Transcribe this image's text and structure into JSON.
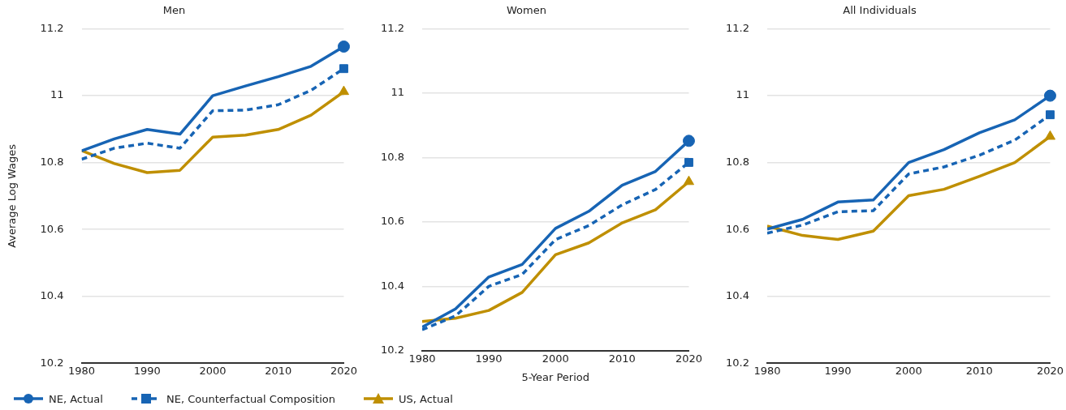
{
  "chart_data": [
    {
      "type": "line",
      "title": "Men",
      "ylabel": "Average Log Wages",
      "x": [
        1980,
        1985,
        1990,
        1995,
        2000,
        2005,
        2010,
        2015,
        2020
      ],
      "xlim": [
        1980,
        2020
      ],
      "xticks": [
        1980,
        1990,
        2000,
        2010,
        2020
      ],
      "ylim": [
        10.2,
        11.2
      ],
      "yticks": [
        10.2,
        10.4,
        10.6,
        10.8,
        11,
        11.2
      ],
      "grid": "y",
      "legend": "bottom",
      "series": [
        {
          "name": "NE, Actual",
          "color": "#1764b4",
          "line_style": "solid",
          "values": [
            10.835,
            10.871,
            10.899,
            10.885,
            11.0,
            11.029,
            11.057,
            11.088,
            11.147
          ]
        },
        {
          "type": "scatter",
          "color": "#1764b4",
          "marker": "circle",
          "values": [
            null,
            null,
            null,
            null,
            null,
            null,
            null,
            null,
            11.147
          ]
        },
        {
          "name": "NE, Counterfactual Composition",
          "color": "#1764b4",
          "line_style": "dashed",
          "values": [
            10.81,
            10.843,
            10.858,
            10.843,
            10.955,
            10.957,
            10.973,
            11.016,
            11.081
          ]
        },
        {
          "type": "scatter",
          "color": "#1764b4",
          "marker": "square",
          "values": [
            null,
            null,
            null,
            null,
            null,
            null,
            null,
            null,
            11.081
          ]
        },
        {
          "name": "US, Actual",
          "color": "#bf8f00",
          "line_style": "solid",
          "values": [
            10.836,
            10.797,
            10.77,
            10.777,
            10.876,
            10.882,
            10.899,
            10.942,
            11.012
          ]
        },
        {
          "type": "scatter",
          "color": "#bf8f00",
          "marker": "triangle",
          "values": [
            null,
            null,
            null,
            null,
            null,
            null,
            null,
            null,
            11.012
          ]
        }
      ]
    },
    {
      "type": "line",
      "title": "Women",
      "xlabel": "5-Year Period",
      "x": [
        1980,
        1985,
        1990,
        1995,
        2000,
        2005,
        2010,
        2015,
        2020
      ],
      "xlim": [
        1980,
        2020
      ],
      "xticks": [
        1980,
        1990,
        2000,
        2010,
        2020
      ],
      "ylim": [
        10.2,
        11.2
      ],
      "yticks": [
        10.2,
        10.4,
        10.6,
        10.8,
        11,
        11.2
      ],
      "grid": "y",
      "series": [
        {
          "color": "#1764b4",
          "line_style": "solid",
          "values": [
            10.273,
            10.33,
            10.429,
            10.468,
            10.58,
            10.633,
            10.714,
            10.757,
            10.852
          ]
        },
        {
          "type": "scatter",
          "color": "#1764b4",
          "marker": "circle",
          "values": [
            null,
            null,
            null,
            null,
            null,
            null,
            null,
            null,
            10.852
          ]
        },
        {
          "color": "#1764b4",
          "line_style": "dashed",
          "values": [
            10.265,
            10.308,
            10.4,
            10.437,
            10.545,
            10.589,
            10.653,
            10.701,
            10.785
          ]
        },
        {
          "type": "scatter",
          "color": "#1764b4",
          "marker": "square",
          "values": [
            null,
            null,
            null,
            null,
            null,
            null,
            null,
            null,
            10.785
          ]
        },
        {
          "color": "#bf8f00",
          "line_style": "solid",
          "values": [
            10.291,
            10.301,
            10.325,
            10.381,
            10.498,
            10.535,
            10.597,
            10.638,
            10.725
          ]
        },
        {
          "type": "scatter",
          "color": "#bf8f00",
          "marker": "triangle",
          "values": [
            null,
            null,
            null,
            null,
            null,
            null,
            null,
            null,
            10.725
          ]
        }
      ]
    },
    {
      "type": "line",
      "title": "All Individuals",
      "x": [
        1980,
        1985,
        1990,
        1995,
        2000,
        2005,
        2010,
        2015,
        2020
      ],
      "xlim": [
        1980,
        2020
      ],
      "xticks": [
        1980,
        1990,
        2000,
        2010,
        2020
      ],
      "ylim": [
        10.2,
        11.2
      ],
      "yticks": [
        10.2,
        10.4,
        10.6,
        10.8,
        11,
        11.2
      ],
      "grid": "y",
      "series": [
        {
          "color": "#1764b4",
          "line_style": "solid",
          "values": [
            10.601,
            10.63,
            10.682,
            10.688,
            10.8,
            10.839,
            10.889,
            10.928,
            11.0
          ]
        },
        {
          "type": "scatter",
          "color": "#1764b4",
          "marker": "circle",
          "values": [
            null,
            null,
            null,
            null,
            null,
            null,
            null,
            null,
            11.0
          ]
        },
        {
          "color": "#1764b4",
          "line_style": "dashed",
          "values": [
            10.589,
            10.613,
            10.653,
            10.656,
            10.766,
            10.787,
            10.822,
            10.867,
            10.943
          ]
        },
        {
          "type": "scatter",
          "color": "#1764b4",
          "marker": "square",
          "values": [
            null,
            null,
            null,
            null,
            null,
            null,
            null,
            null,
            10.943
          ]
        },
        {
          "color": "#bf8f00",
          "line_style": "solid",
          "values": [
            10.61,
            10.582,
            10.57,
            10.595,
            10.701,
            10.72,
            10.759,
            10.8,
            10.878
          ]
        },
        {
          "type": "scatter",
          "color": "#bf8f00",
          "marker": "triangle",
          "values": [
            null,
            null,
            null,
            null,
            null,
            null,
            null,
            null,
            10.878
          ]
        }
      ]
    }
  ]
}
